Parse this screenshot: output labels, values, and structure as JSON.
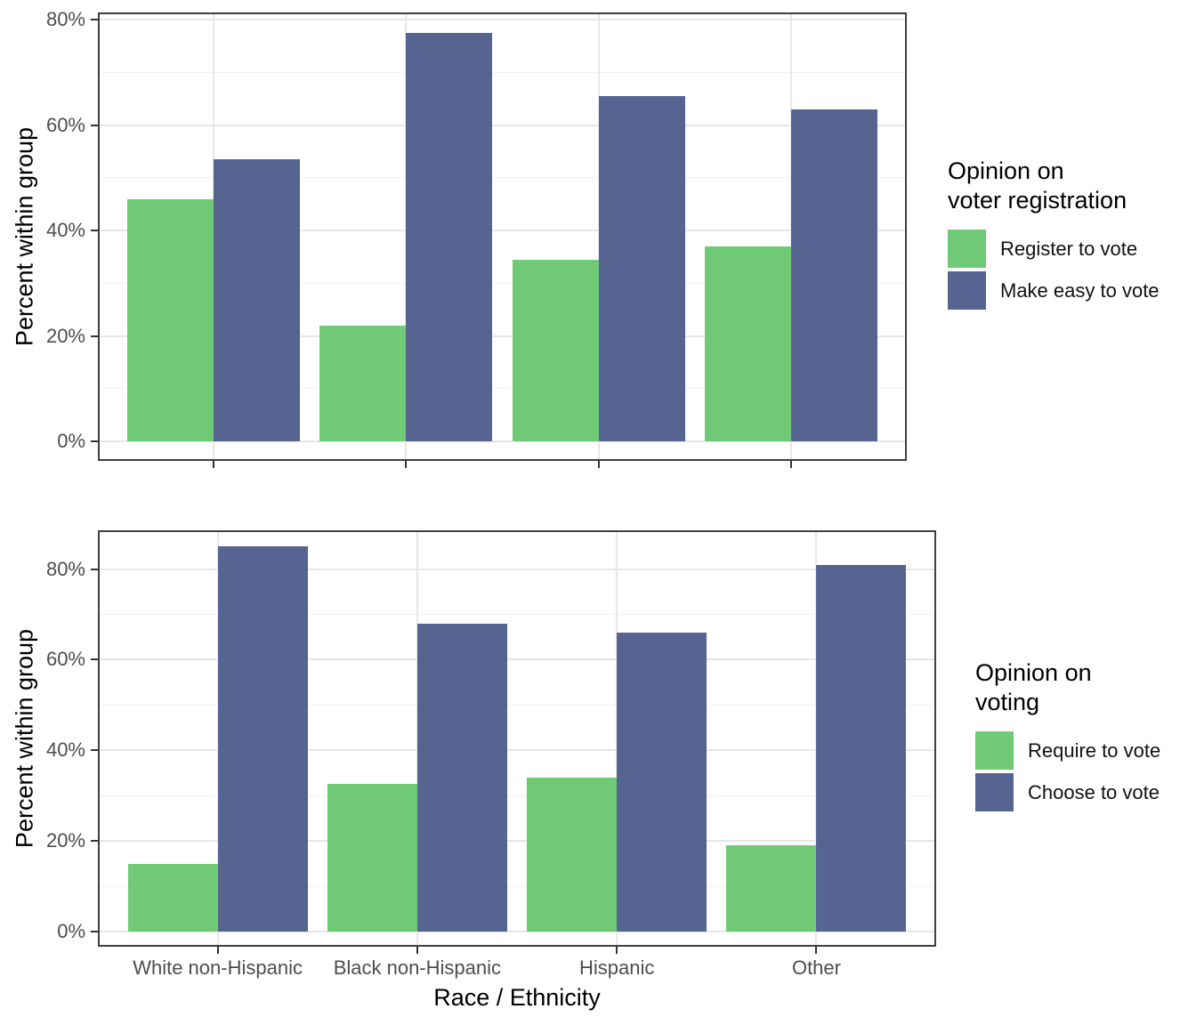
{
  "figure": {
    "background": "#ffffff",
    "description": "Two stacked grouped-bar panels comparing opinions by race/ethnicity"
  },
  "colors": {
    "bar_green": "#70CA75",
    "bar_blue": "#556491",
    "grid_major": "#e7e7e7",
    "grid_minor": "#f1f1f1",
    "panel_border": "#3f3f3f",
    "tick_mark": "#333333",
    "tick_label": "#4d4d4d",
    "axis_title": "#000000"
  },
  "chart_data": [
    {
      "type": "bar",
      "orientation": "vertical",
      "grouping": "dodged",
      "title": "",
      "xlabel": "",
      "ylabel": "Percent within group",
      "categories": [
        "White non-Hispanic",
        "Black non-Hispanic",
        "Hispanic",
        "Other"
      ],
      "series": [
        {
          "name": "Register to vote",
          "color": "#70CA75",
          "values": [
            46,
            22,
            34.5,
            37
          ]
        },
        {
          "name": "Make easy to vote",
          "color": "#556491",
          "values": [
            53.5,
            77.5,
            65.5,
            63
          ]
        }
      ],
      "ylim": [
        0,
        81.5
      ],
      "y_ticks": [
        0,
        20,
        40,
        60,
        80
      ],
      "y_tick_labels": [
        "0%",
        "20%",
        "40%",
        "60%",
        "80%"
      ],
      "y_minor_ticks": [
        10,
        30,
        50,
        70
      ],
      "x_tick_labels_visible": false,
      "grid": "major+minor",
      "legend": {
        "position": "right",
        "title_lines": [
          "Opinion on",
          "voter registration"
        ],
        "entries": [
          "Register to vote",
          "Make easy to vote"
        ]
      }
    },
    {
      "type": "bar",
      "orientation": "vertical",
      "grouping": "dodged",
      "title": "",
      "xlabel": "Race / Ethnicity",
      "ylabel": "Percent within group",
      "categories": [
        "White non-Hispanic",
        "Black non-Hispanic",
        "Hispanic",
        "Other"
      ],
      "series": [
        {
          "name": "Require to vote",
          "color": "#70CA75",
          "values": [
            15,
            32.5,
            34,
            19
          ]
        },
        {
          "name": "Choose to vote",
          "color": "#556491",
          "values": [
            85,
            68,
            66,
            81
          ]
        }
      ],
      "ylim": [
        0,
        88.5
      ],
      "y_ticks": [
        0,
        20,
        40,
        60,
        80
      ],
      "y_tick_labels": [
        "0%",
        "20%",
        "40%",
        "60%",
        "80%"
      ],
      "y_minor_ticks": [
        10,
        30,
        50,
        70
      ],
      "x_tick_labels_visible": true,
      "grid": "major+minor",
      "legend": {
        "position": "right",
        "title_lines": [
          "Opinion on",
          "voting"
        ],
        "entries": [
          "Require to vote",
          "Choose to vote"
        ]
      }
    }
  ]
}
